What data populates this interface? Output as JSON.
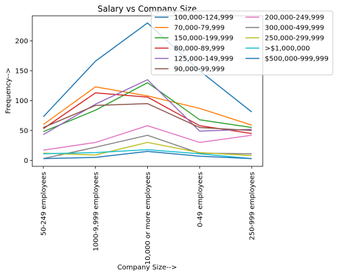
{
  "chart_data": {
    "type": "line",
    "title": "Salary vs Company Size",
    "xlabel": "Company Size-->",
    "ylabel": "Frequency-->",
    "categories": [
      "50-249 employees",
      "1000-9,999 employees",
      "10,000 or more employees",
      "0-49 employees",
      "250-999 employees"
    ],
    "ylim": [
      -10,
      242
    ],
    "yticks": [
      0,
      50,
      100,
      150,
      200
    ],
    "grid": false,
    "legend_position": "upper-right, extending outside the axes",
    "series": [
      {
        "name": "100,000-124,999",
        "color": "#1f77b4",
        "values": [
          73,
          166,
          230,
          150,
          81
        ]
      },
      {
        "name": "70,000-79,999",
        "color": "#ff7f0e",
        "values": [
          60,
          123,
          108,
          87,
          59
        ]
      },
      {
        "name": "150,000-199,999",
        "color": "#2ca02c",
        "values": [
          48,
          84,
          130,
          68,
          55
        ]
      },
      {
        "name": "80,000-89,999",
        "color": "#d62728",
        "values": [
          53,
          113,
          106,
          58,
          45
        ]
      },
      {
        "name": "125,000-149,999",
        "color": "#9467bd",
        "values": [
          43,
          94,
          135,
          49,
          52
        ]
      },
      {
        "name": "90,000-99,999",
        "color": "#8c564b",
        "values": [
          55,
          92,
          95,
          55,
          50
        ]
      },
      {
        "name": "200,000-249,999",
        "color": "#e377c2",
        "values": [
          17,
          30,
          58,
          30,
          42
        ]
      },
      {
        "name": "300,000-499,999",
        "color": "#7f7f7f",
        "values": [
          3,
          22,
          42,
          12,
          11
        ]
      },
      {
        "name": "250,000-299,999",
        "color": "#bcbd22",
        "values": [
          12,
          9,
          30,
          13,
          8
        ]
      },
      {
        "name": ">$1,000,000",
        "color": "#17becf",
        "values": [
          11,
          13,
          18,
          11,
          3
        ]
      },
      {
        "name": "$500,000-999,999",
        "color": "#1f77b4",
        "values": [
          3,
          5,
          15,
          7,
          3
        ]
      }
    ]
  }
}
